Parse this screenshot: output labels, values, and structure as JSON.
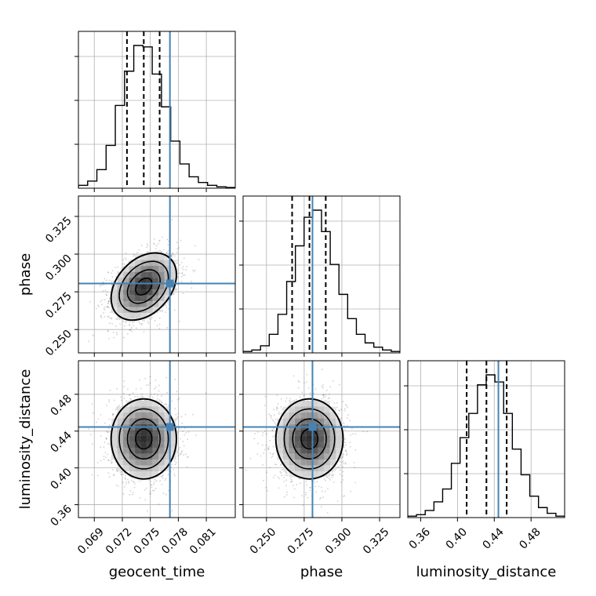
{
  "figure": {
    "type": "corner-plot",
    "background": "#ffffff",
    "truth_color": "#4682b4",
    "hist_color": "#000000",
    "grid_color": "#b0b0b0"
  },
  "chart_data": {
    "type": "corner",
    "parameters": [
      {
        "name": "geocent_time",
        "label": "geocent_time",
        "range": [
          0.0673,
          0.0841
        ],
        "ticks": [
          {
            "value": 0.069,
            "label": "0.069"
          },
          {
            "value": 0.072,
            "label": "0.072"
          },
          {
            "value": 0.075,
            "label": "0.075"
          },
          {
            "value": 0.078,
            "label": "0.078"
          },
          {
            "value": 0.081,
            "label": "0.081"
          }
        ],
        "truth": 0.0771,
        "quantiles": [
          0.0725,
          0.0743,
          0.076
        ],
        "hist": [
          0.02,
          0.05,
          0.13,
          0.3,
          0.58,
          0.82,
          1.0,
          0.99,
          0.8,
          0.57,
          0.33,
          0.17,
          0.08,
          0.04,
          0.02,
          0.01,
          0.005
        ]
      },
      {
        "name": "phase",
        "label": "phase",
        "range": [
          0.2345,
          0.3385
        ],
        "ticks": [
          {
            "value": 0.25,
            "label": "0.250"
          },
          {
            "value": 0.275,
            "label": "0.275"
          },
          {
            "value": 0.3,
            "label": "0.300"
          },
          {
            "value": 0.325,
            "label": "0.325"
          }
        ],
        "truth": 0.2805,
        "quantiles": [
          0.267,
          0.2785,
          0.2893
        ],
        "hist": [
          0.01,
          0.02,
          0.05,
          0.13,
          0.27,
          0.5,
          0.75,
          0.95,
          1.0,
          0.85,
          0.62,
          0.41,
          0.24,
          0.13,
          0.07,
          0.04,
          0.02,
          0.01
        ]
      },
      {
        "name": "luminosity_distance",
        "label": "luminosity_distance",
        "range": [
          0.346,
          0.5165
        ],
        "ticks": [
          {
            "value": 0.36,
            "label": "0.36"
          },
          {
            "value": 0.4,
            "label": "0.40"
          },
          {
            "value": 0.44,
            "label": "0.44"
          },
          {
            "value": 0.48,
            "label": "0.48"
          }
        ],
        "truth": 0.4445,
        "quantiles": [
          0.41,
          0.4315,
          0.4535
        ],
        "hist": [
          0.01,
          0.02,
          0.05,
          0.11,
          0.2,
          0.38,
          0.56,
          0.73,
          0.93,
          1.0,
          0.95,
          0.73,
          0.48,
          0.3,
          0.15,
          0.07,
          0.03,
          0.01
        ]
      }
    ],
    "correlations": {
      "1_0": 0.35,
      "2_0": 0.0,
      "2_1": 0.0
    }
  }
}
